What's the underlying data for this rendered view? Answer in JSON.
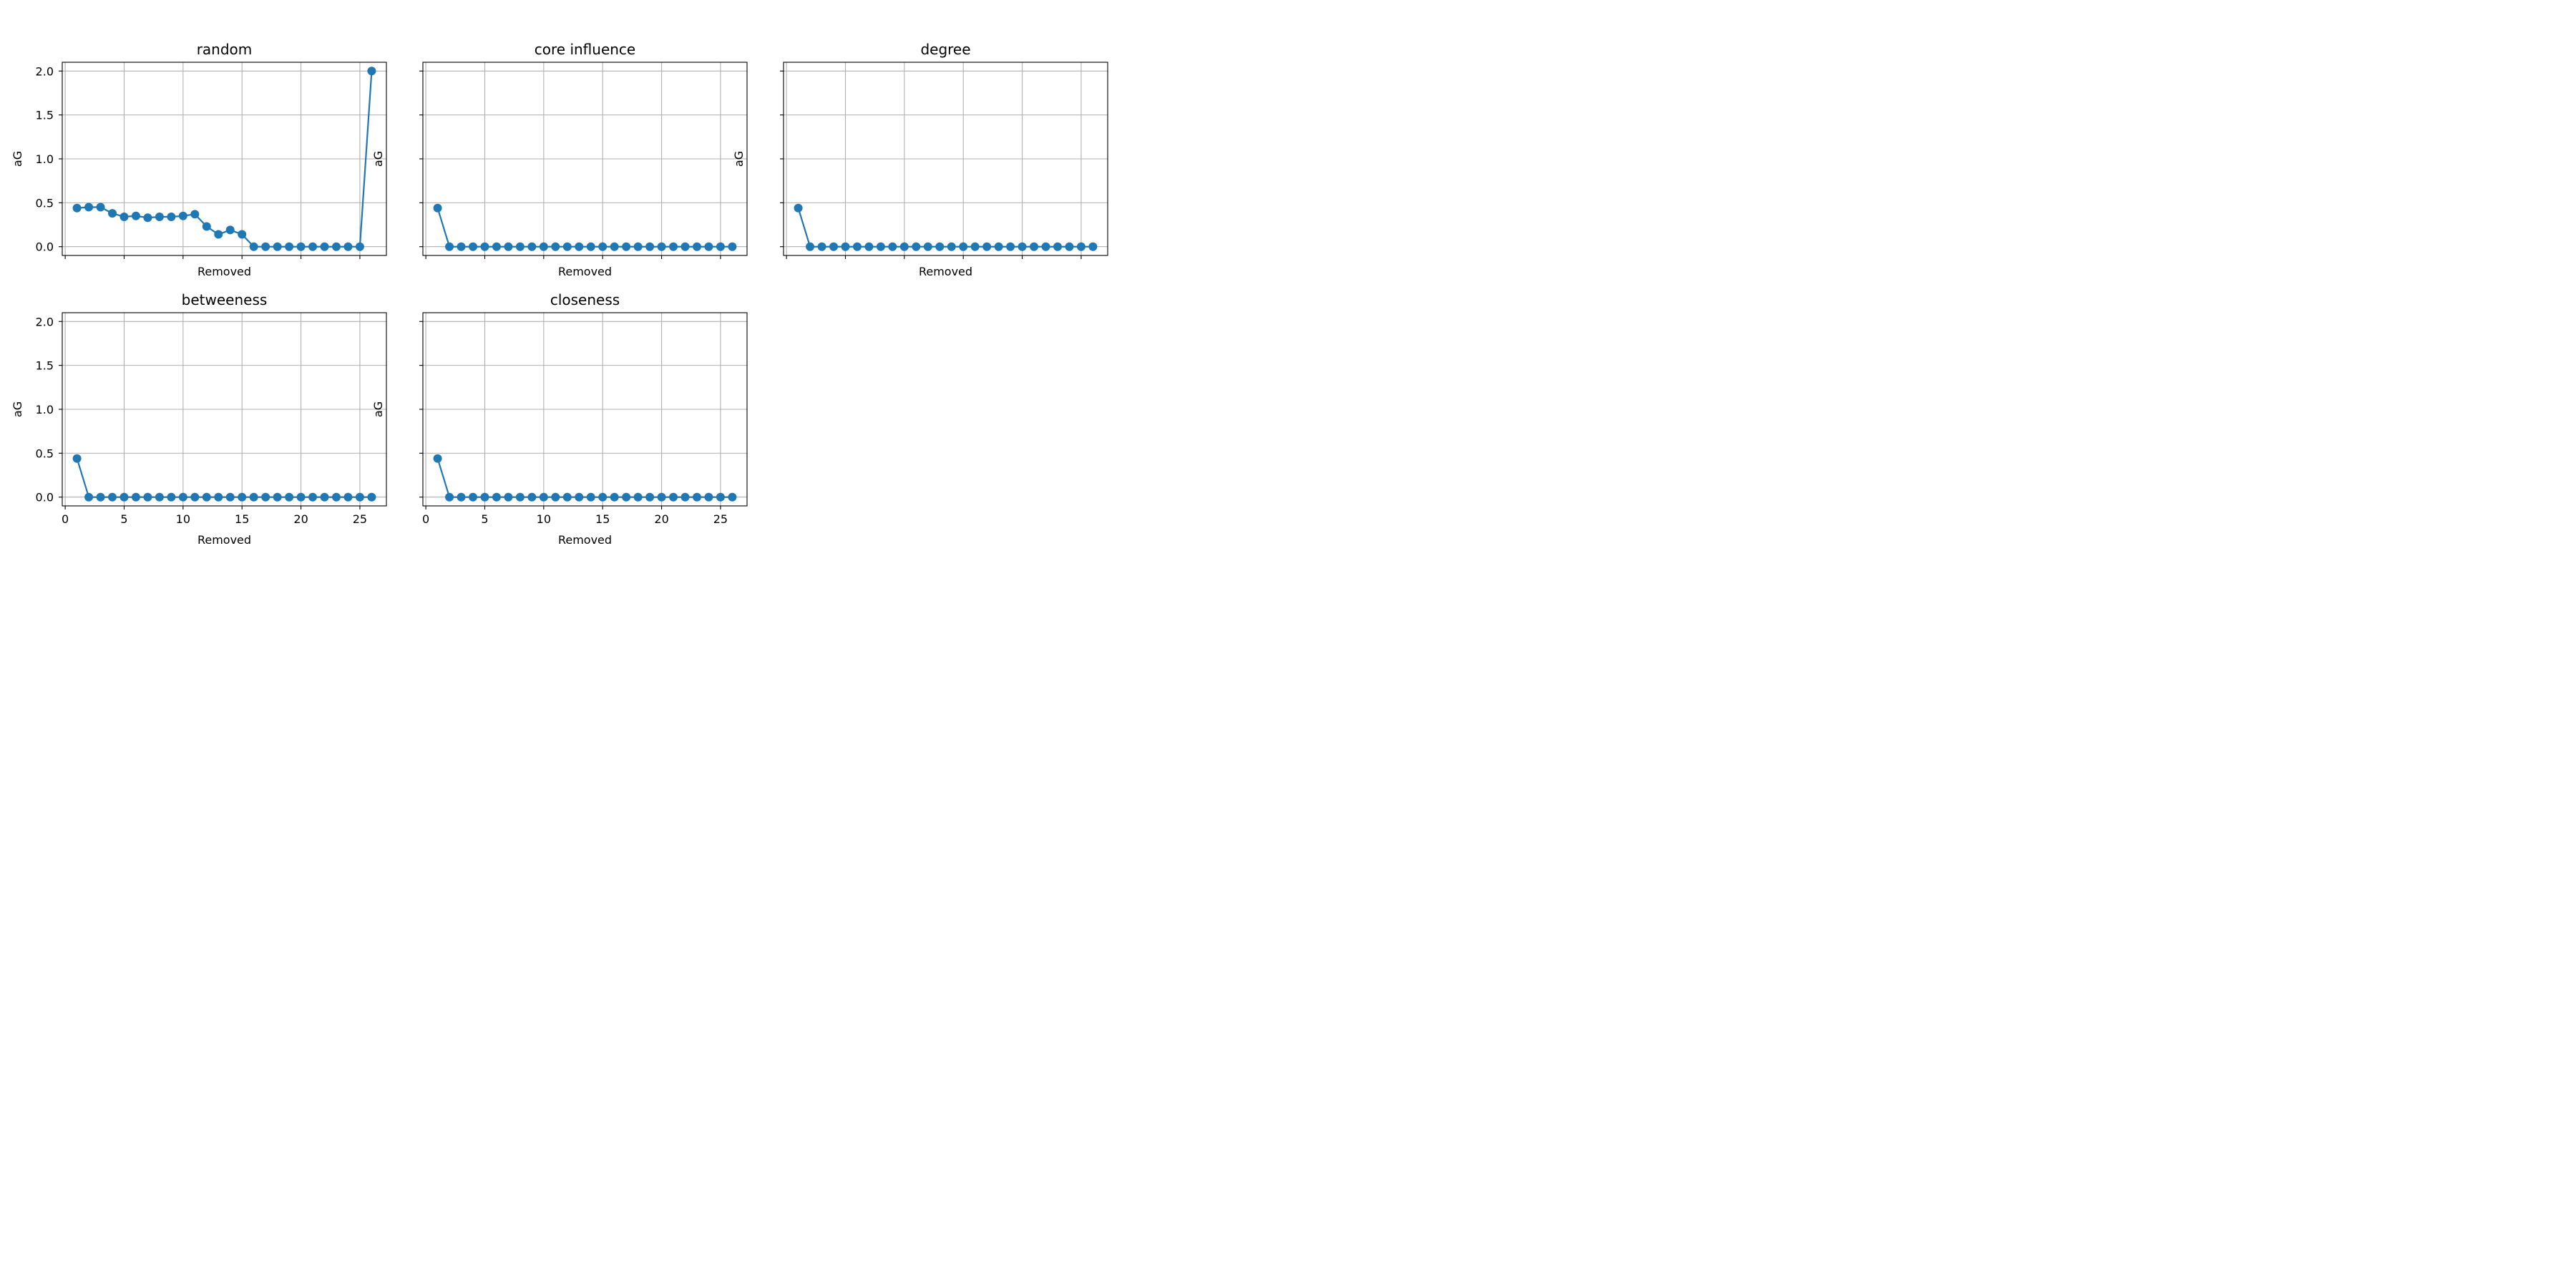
{
  "chart_data": [
    {
      "type": "line",
      "title": "random",
      "xlabel": "Removed",
      "ylabel": "aG",
      "x": [
        1,
        2,
        3,
        4,
        5,
        6,
        7,
        8,
        9,
        10,
        11,
        12,
        13,
        14,
        15,
        16,
        17,
        18,
        19,
        20,
        21,
        22,
        23,
        24,
        25,
        26
      ],
      "series": [
        {
          "values": [
            0.44,
            0.45,
            0.45,
            0.38,
            0.34,
            0.35,
            0.33,
            0.34,
            0.34,
            0.35,
            0.37,
            0.23,
            0.14,
            0.19,
            0.14,
            0,
            0,
            0,
            0,
            0,
            0,
            0,
            0,
            0,
            0,
            2.0
          ]
        }
      ],
      "xlim": [
        -0.25,
        27.25
      ],
      "ylim": [
        -0.1,
        2.1
      ],
      "xticks": [
        0,
        5,
        10,
        15,
        20,
        25
      ],
      "yticks": [
        0.0,
        0.5,
        1.0,
        1.5,
        2.0
      ],
      "show_xtick_labels": false,
      "show_ytick_labels": true,
      "grid": true
    },
    {
      "type": "line",
      "title": "core influence",
      "xlabel": "Removed",
      "ylabel": "aG",
      "x": [
        1,
        2,
        3,
        4,
        5,
        6,
        7,
        8,
        9,
        10,
        11,
        12,
        13,
        14,
        15,
        16,
        17,
        18,
        19,
        20,
        21,
        22,
        23,
        24,
        25,
        26
      ],
      "series": [
        {
          "values": [
            0.44,
            0,
            0,
            0,
            0,
            0,
            0,
            0,
            0,
            0,
            0,
            0,
            0,
            0,
            0,
            0,
            0,
            0,
            0,
            0,
            0,
            0,
            0,
            0,
            0,
            0
          ]
        }
      ],
      "xlim": [
        -0.25,
        27.25
      ],
      "ylim": [
        -0.1,
        2.1
      ],
      "xticks": [
        0,
        5,
        10,
        15,
        20,
        25
      ],
      "yticks": [
        0.0,
        0.5,
        1.0,
        1.5,
        2.0
      ],
      "show_xtick_labels": false,
      "show_ytick_labels": false,
      "grid": true
    },
    {
      "type": "line",
      "title": "degree",
      "xlabel": "Removed",
      "ylabel": "aG",
      "x": [
        1,
        2,
        3,
        4,
        5,
        6,
        7,
        8,
        9,
        10,
        11,
        12,
        13,
        14,
        15,
        16,
        17,
        18,
        19,
        20,
        21,
        22,
        23,
        24,
        25,
        26
      ],
      "series": [
        {
          "values": [
            0.44,
            0,
            0,
            0,
            0,
            0,
            0,
            0,
            0,
            0,
            0,
            0,
            0,
            0,
            0,
            0,
            0,
            0,
            0,
            0,
            0,
            0,
            0,
            0,
            0,
            0
          ]
        }
      ],
      "xlim": [
        -0.25,
        27.25
      ],
      "ylim": [
        -0.1,
        2.1
      ],
      "xticks": [
        0,
        5,
        10,
        15,
        20,
        25
      ],
      "yticks": [
        0.0,
        0.5,
        1.0,
        1.5,
        2.0
      ],
      "show_xtick_labels": false,
      "show_ytick_labels": false,
      "grid": true
    },
    {
      "type": "line",
      "title": "betweeness",
      "xlabel": "Removed",
      "ylabel": "aG",
      "x": [
        1,
        2,
        3,
        4,
        5,
        6,
        7,
        8,
        9,
        10,
        11,
        12,
        13,
        14,
        15,
        16,
        17,
        18,
        19,
        20,
        21,
        22,
        23,
        24,
        25,
        26
      ],
      "series": [
        {
          "values": [
            0.44,
            0,
            0,
            0,
            0,
            0,
            0,
            0,
            0,
            0,
            0,
            0,
            0,
            0,
            0,
            0,
            0,
            0,
            0,
            0,
            0,
            0,
            0,
            0,
            0,
            0
          ]
        }
      ],
      "xlim": [
        -0.25,
        27.25
      ],
      "ylim": [
        -0.1,
        2.1
      ],
      "xticks": [
        0,
        5,
        10,
        15,
        20,
        25
      ],
      "yticks": [
        0.0,
        0.5,
        1.0,
        1.5,
        2.0
      ],
      "show_xtick_labels": true,
      "show_ytick_labels": true,
      "grid": true
    },
    {
      "type": "line",
      "title": "closeness",
      "xlabel": "Removed",
      "ylabel": "aG",
      "x": [
        1,
        2,
        3,
        4,
        5,
        6,
        7,
        8,
        9,
        10,
        11,
        12,
        13,
        14,
        15,
        16,
        17,
        18,
        19,
        20,
        21,
        22,
        23,
        24,
        25,
        26
      ],
      "series": [
        {
          "values": [
            0.44,
            0,
            0,
            0,
            0,
            0,
            0,
            0,
            0,
            0,
            0,
            0,
            0,
            0,
            0,
            0,
            0,
            0,
            0,
            0,
            0,
            0,
            0,
            0,
            0,
            0
          ]
        }
      ],
      "xlim": [
        -0.25,
        27.25
      ],
      "ylim": [
        -0.1,
        2.1
      ],
      "xticks": [
        0,
        5,
        10,
        15,
        20,
        25
      ],
      "yticks": [
        0.0,
        0.5,
        1.0,
        1.5,
        2.0
      ],
      "show_xtick_labels": true,
      "show_ytick_labels": false,
      "grid": true
    }
  ],
  "colors": {
    "series": "#1f77b4",
    "grid": "#b0b0b0",
    "frame": "#000000"
  }
}
